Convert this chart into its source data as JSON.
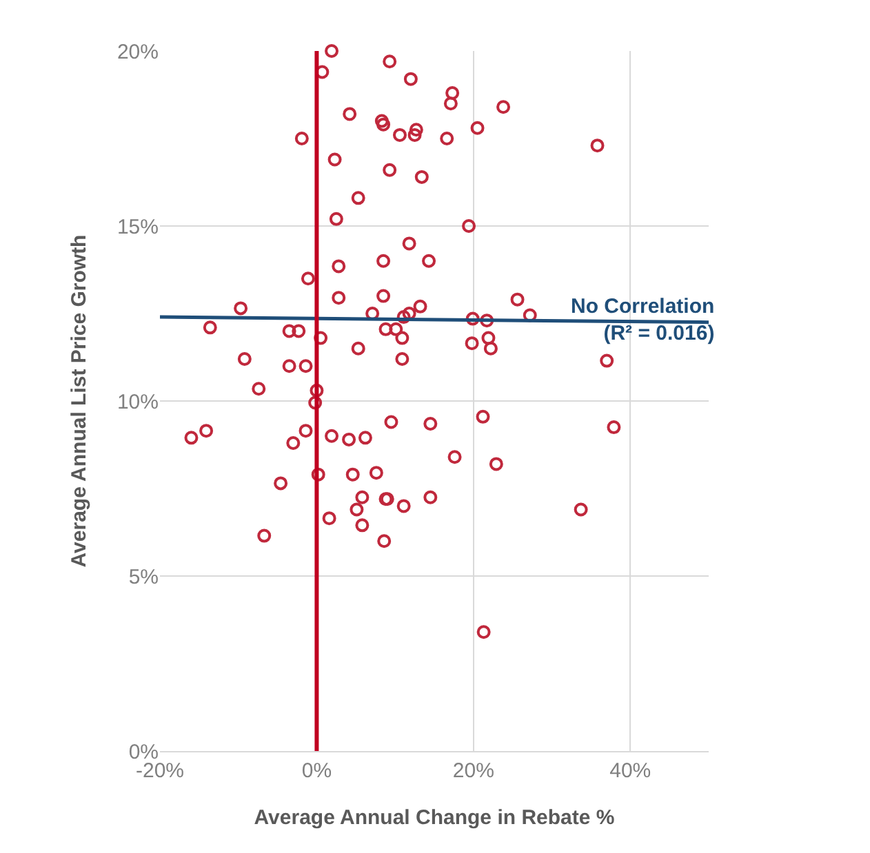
{
  "chart_data": {
    "type": "scatter",
    "xlabel": "Average Annual Change in Rebate %",
    "ylabel": "Average Annual List Price Growth",
    "xlim": [
      -20,
      50
    ],
    "xticks": [
      {
        "value": -20,
        "label": "-20%"
      },
      {
        "value": 0,
        "label": "0%"
      },
      {
        "value": 20,
        "label": "20%"
      },
      {
        "value": 40,
        "label": "40%"
      }
    ],
    "ylim": [
      0,
      20
    ],
    "yticks": [
      {
        "value": 0,
        "label": "0%"
      },
      {
        "value": 5,
        "label": "5%"
      },
      {
        "value": 10,
        "label": "10%"
      },
      {
        "value": 15,
        "label": "15%"
      },
      {
        "value": 20,
        "label": "20%"
      }
    ],
    "grid": true,
    "legend": false,
    "marker": "circle",
    "series": [
      {
        "color": "#c0283c",
        "x": [
          1.9,
          0.7,
          9.3,
          12,
          17.3,
          17.1,
          23.8,
          4.2,
          8.3,
          8.5,
          12.7,
          20.5,
          -1.9,
          10.6,
          12.5,
          16.6,
          35.8,
          2.3,
          9.3,
          13.4,
          5.3,
          2.5,
          19.4,
          11.8,
          8.5,
          2.8,
          14.3,
          -1.1,
          2.8,
          8.5,
          -9.7,
          25.6,
          7.1,
          13.2,
          11.8,
          11.1,
          19.9,
          21.7,
          27.2,
          -13.6,
          -3.5,
          -2.3,
          0.5,
          8.8,
          10.1,
          10.9,
          5.3,
          19.8,
          21.9,
          22.2,
          -9.2,
          -3.5,
          -1.4,
          10.9,
          37.0,
          -7.4,
          0,
          -0.2,
          9.5,
          14.5,
          21.2,
          37.9,
          -16.0,
          -14.1,
          -1.4,
          -3.0,
          1.9,
          4.1,
          6.2,
          17.6,
          22.9,
          0.2,
          -4.6,
          4.6,
          7.6,
          5.8,
          8.8,
          9.0,
          11.1,
          14.5,
          33.7,
          1.6,
          5.1,
          5.8,
          8.6,
          -6.7,
          21.3
        ],
        "values": [
          20.0,
          19.4,
          19.7,
          19.2,
          18.8,
          18.5,
          18.4,
          18.2,
          18.0,
          17.9,
          17.75,
          17.8,
          17.5,
          17.6,
          17.6,
          17.5,
          17.3,
          16.9,
          16.6,
          16.4,
          15.8,
          15.2,
          15.0,
          14.5,
          14.0,
          13.85,
          14.0,
          13.5,
          12.95,
          13.0,
          12.65,
          12.9,
          12.5,
          12.7,
          12.5,
          12.4,
          12.35,
          12.3,
          12.45,
          12.1,
          12.0,
          12.0,
          11.8,
          12.05,
          12.05,
          11.8,
          11.5,
          11.65,
          11.8,
          11.5,
          11.2,
          11.0,
          11.0,
          11.2,
          11.15,
          10.35,
          10.3,
          9.95,
          9.4,
          9.35,
          9.55,
          9.25,
          8.95,
          9.15,
          9.15,
          8.8,
          9.0,
          8.9,
          8.95,
          8.4,
          8.2,
          7.9,
          7.65,
          7.9,
          7.95,
          7.25,
          7.2,
          7.2,
          7.0,
          7.25,
          6.9,
          6.65,
          6.9,
          6.45,
          6.0,
          6.15,
          3.4
        ]
      },
      {
        "type": "line",
        "color": "#1f4e79",
        "marker": "none",
        "x": [
          -20,
          50
        ],
        "values": [
          12.4,
          12.25
        ]
      }
    ],
    "ref_lines": [
      {
        "axis": "x",
        "value": 0,
        "color": "#c00020",
        "line_style": "solid"
      }
    ],
    "annotations": [
      {
        "text": "No Correlation\n(R² = 0.016)",
        "x": 41.6,
        "y": 12.3
      }
    ]
  }
}
